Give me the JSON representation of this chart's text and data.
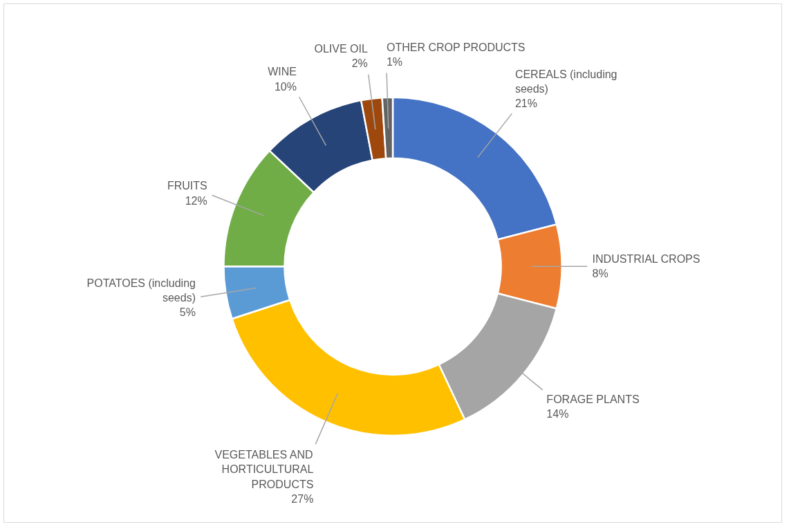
{
  "chart_data": {
    "type": "donut",
    "categories": [
      "CEREALS (including seeds)",
      "INDUSTRIAL CROPS",
      "FORAGE PLANTS",
      "VEGETABLES AND HORTICULTURAL PRODUCTS",
      "POTATOES (including seeds)",
      "FRUITS",
      "WINE",
      "OLIVE OIL",
      "OTHER CROP PRODUCTS"
    ],
    "values": [
      21,
      8,
      14,
      27,
      5,
      12,
      10,
      2,
      1
    ],
    "colors": [
      "#4472c4",
      "#ed7d31",
      "#a5a5a5",
      "#ffc000",
      "#5b9bd5",
      "#70ad47",
      "#264478",
      "#9e480e",
      "#636363"
    ],
    "value_labels": [
      "21%",
      "8%",
      "14%",
      "27%",
      "5%",
      "12%",
      "10%",
      "2%",
      "1%"
    ]
  }
}
